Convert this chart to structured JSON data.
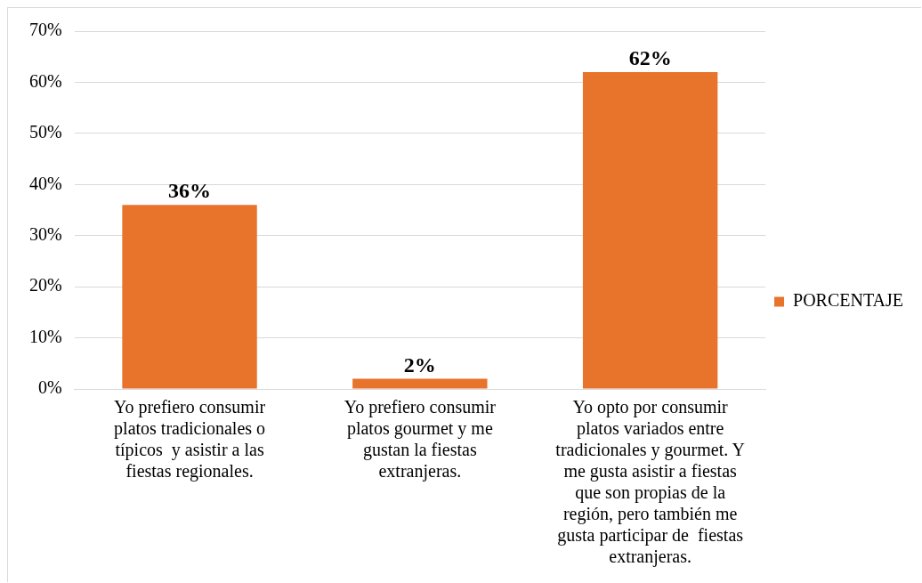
{
  "chart_data": {
    "type": "bar",
    "categories": [
      "Yo prefiero consumir platos tradicionales o típicos  y asistir a las fiestas regionales.",
      "Yo prefiero consumir platos gourmet y me gustan la fiestas extranjeras.",
      "Yo opto por consumir platos variados entre tradicionales y gourmet. Y me gusta asistir a fiestas que son propias de la región, pero también me gusta participar de  fiestas extranjeras."
    ],
    "series": [
      {
        "name": "PORCENTAJE",
        "color": "#e8732a",
        "values": [
          36,
          2,
          62
        ],
        "value_labels": [
          "36%",
          "2%",
          "62%"
        ]
      }
    ],
    "ylim": [
      0,
      70
    ],
    "yticks": [
      {
        "value": 0,
        "label": "0%"
      },
      {
        "value": 10,
        "label": "10%"
      },
      {
        "value": 20,
        "label": "20%"
      },
      {
        "value": 30,
        "label": "30%"
      },
      {
        "value": 40,
        "label": "40%"
      },
      {
        "value": 50,
        "label": "50%"
      },
      {
        "value": 60,
        "label": "60%"
      },
      {
        "value": 70,
        "label": "70%"
      }
    ],
    "grid": "y",
    "legend": "right"
  }
}
